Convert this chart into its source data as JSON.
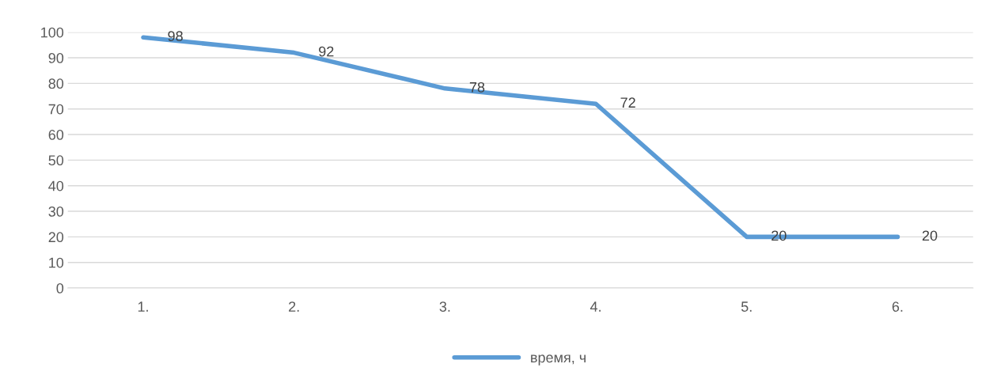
{
  "chart_data": {
    "type": "line",
    "categories": [
      "1.",
      "2.",
      "3.",
      "4.",
      "5.",
      "6."
    ],
    "series": [
      {
        "name": "время, ч",
        "color": "#5b9bd5",
        "values": [
          98,
          92,
          78,
          72,
          20,
          20
        ]
      }
    ],
    "ylim": [
      0,
      100
    ],
    "yticks": [
      0,
      10,
      20,
      30,
      40,
      50,
      60,
      70,
      80,
      90,
      100
    ],
    "grid": "y",
    "legend": "bottom",
    "data_labels": true,
    "marker": "none",
    "line_style": "solid"
  }
}
